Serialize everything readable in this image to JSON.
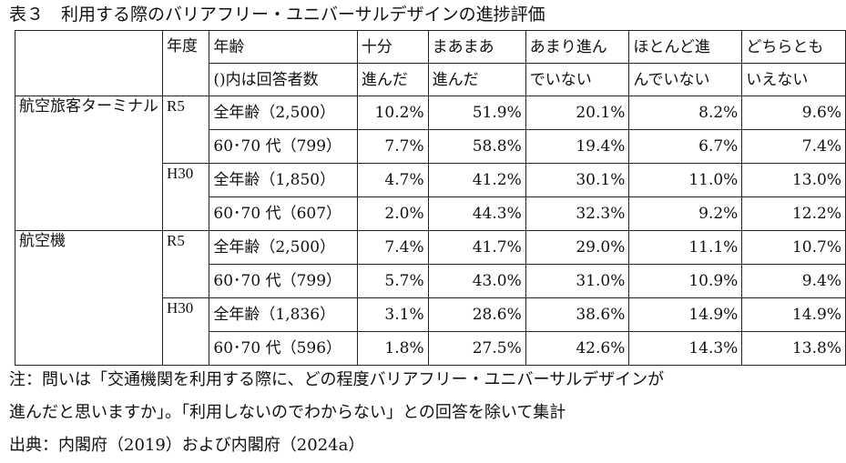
{
  "title": "表３　利用する際のバリアフリー・ユニバーサルデザインの進捗評価",
  "header": {
    "year": "年度",
    "age_line1": "年齢",
    "age_line2": "()内は回答者数",
    "c1_line1": "十分",
    "c1_line2": "進んだ",
    "c2_line1": "まあまあ",
    "c2_line2": "進んだ",
    "c3_line1": "あまり進ん",
    "c3_line2": "でいない",
    "c4_line1": "ほとんど進",
    "c4_line2": "んでいない",
    "c5_line1": "どちらとも",
    "c5_line2": "いえない"
  },
  "groups": [
    {
      "name": "航空旅客ターミナル",
      "years": [
        {
          "year": "R5",
          "rows": [
            {
              "age": "全年齢（2,500）",
              "values": [
                "10.2%",
                "51.9%",
                "20.1%",
                "8.2%",
                "9.6%"
              ]
            },
            {
              "age": "60･70 代（799）",
              "values": [
                "7.7%",
                "58.8%",
                "19.4%",
                "6.7%",
                "7.4%"
              ]
            }
          ]
        },
        {
          "year": "H30",
          "rows": [
            {
              "age": "全年齢（1,850）",
              "values": [
                "4.7%",
                "41.2%",
                "30.1%",
                "11.0%",
                "13.0%"
              ]
            },
            {
              "age": "60･70 代（607）",
              "values": [
                "2.0%",
                "44.3%",
                "32.3%",
                "9.2%",
                "12.2%"
              ]
            }
          ]
        }
      ]
    },
    {
      "name": "航空機",
      "years": [
        {
          "year": "R5",
          "rows": [
            {
              "age": "全年齢（2,500）",
              "values": [
                "7.4%",
                "41.7%",
                "29.0%",
                "11.1%",
                "10.7%"
              ]
            },
            {
              "age": "60･70 代（799）",
              "values": [
                "5.7%",
                "43.0%",
                "31.0%",
                "10.9%",
                "9.4%"
              ]
            }
          ]
        },
        {
          "year": "H30",
          "rows": [
            {
              "age": "全年齢（1,836）",
              "values": [
                "3.1%",
                "28.6%",
                "38.6%",
                "14.9%",
                "14.9%"
              ]
            },
            {
              "age": "60･70 代（596）",
              "values": [
                "1.8%",
                "27.5%",
                "42.6%",
                "14.3%",
                "13.8%"
              ]
            }
          ]
        }
      ]
    }
  ],
  "notes": {
    "line1": "注：問いは「交通機関を利用する際に、どの程度バリアフリー・ユニバーサルデザインが",
    "line2": "進んだと思いますか」。「利用しないのでわからない」との回答を除いて集計",
    "source": "出典：内閣府（2019）および内閣府（2024a）"
  }
}
